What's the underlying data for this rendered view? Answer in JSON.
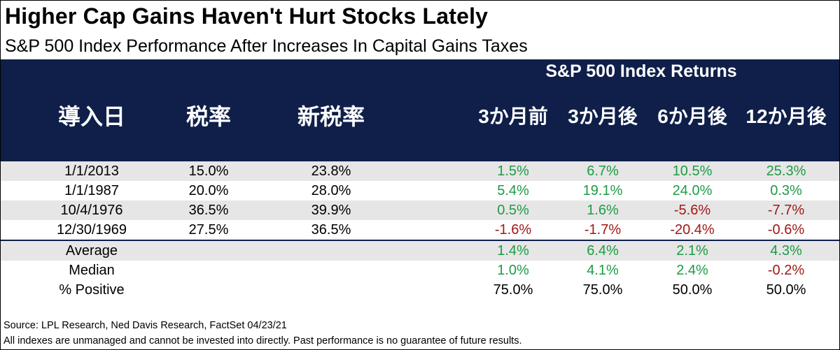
{
  "title": "Higher Cap Gains Haven't Hurt Stocks Lately",
  "subtitle": "S&P 500 Index Performance After Increases In Capital Gains Taxes",
  "header": {
    "group_label": "S&P 500 Index Returns",
    "col_date": "導入日",
    "col_rate": "税率",
    "col_new_rate": "新税率",
    "col_3m_before": "3か月前",
    "col_3m_after": "3か月後",
    "col_6m_after": "6か月後",
    "col_12m_after": "12か月後"
  },
  "colors": {
    "header_bg": "#0f1f4a",
    "positive": "#1e9b45",
    "negative": "#a01818",
    "row_shade": "#e6e6e6"
  },
  "rows": [
    {
      "date": "1/1/2013",
      "rate": "15.0%",
      "new_rate": "23.8%",
      "m3_before": "1.5%",
      "m3_after": "6.7%",
      "m6_after": "10.5%",
      "m12_after": "25.3%"
    },
    {
      "date": "1/1/1987",
      "rate": "20.0%",
      "new_rate": "28.0%",
      "m3_before": "5.4%",
      "m3_after": "19.1%",
      "m6_after": "24.0%",
      "m12_after": "0.3%"
    },
    {
      "date": "10/4/1976",
      "rate": "36.5%",
      "new_rate": "39.9%",
      "m3_before": "0.5%",
      "m3_after": "1.6%",
      "m6_after": "-5.6%",
      "m12_after": "-7.7%"
    },
    {
      "date": "12/30/1969",
      "rate": "27.5%",
      "new_rate": "36.5%",
      "m3_before": "-1.6%",
      "m3_after": "-1.7%",
      "m6_after": "-20.4%",
      "m12_after": "-0.6%"
    }
  ],
  "summary": [
    {
      "label": "Average",
      "m3_before": "1.4%",
      "m3_after": "6.4%",
      "m6_after": "2.1%",
      "m12_after": "4.3%"
    },
    {
      "label": "Median",
      "m3_before": "1.0%",
      "m3_after": "4.1%",
      "m6_after": "2.4%",
      "m12_after": "-0.2%"
    },
    {
      "label": "% Positive",
      "m3_before": "75.0%",
      "m3_after": "75.0%",
      "m6_after": "50.0%",
      "m12_after": "50.0%"
    }
  ],
  "footer": {
    "source": "Source: LPL Research, Ned Davis Research, FactSet 04/23/21",
    "disclaimer": "All indexes are unmanaged and cannot be invested into directly. Past performance is no guarantee of future results."
  }
}
